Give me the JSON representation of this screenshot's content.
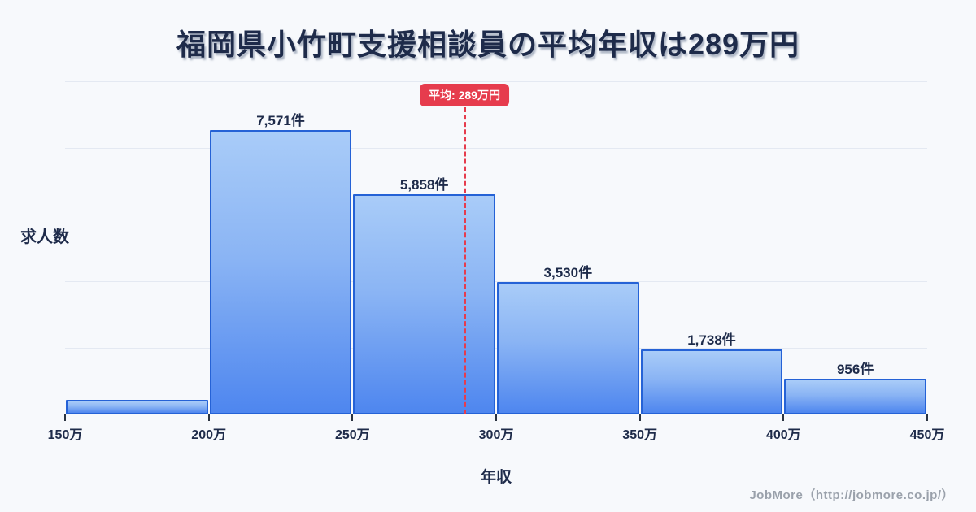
{
  "title": "福岡県小竹町支援相談員の平均年収は289万円",
  "footer": "JobMore（http://jobmore.co.jp/）",
  "colors": {
    "background": "#f7f9fc",
    "text_navy": "#1e2b4a",
    "bar_border": "#2562d6",
    "bar_fill_top": "#a9ccf8",
    "bar_fill_bottom": "#4e86ef",
    "gridline": "#e4e9f2",
    "accent_red": "#e63c4d",
    "footer_gray": "#9aa1ab",
    "badge_text": "#ffffff"
  },
  "chart_data": {
    "type": "bar",
    "title": "福岡県小竹町支援相談員の平均年収は289万円",
    "xlabel": "年収",
    "ylabel": "求人数",
    "unit_suffix": "件",
    "x_tick_labels": [
      "150万",
      "200万",
      "250万",
      "300万",
      "350万",
      "400万",
      "450万"
    ],
    "bins": [
      {
        "range_man_yen": [
          150,
          200
        ],
        "value": 390,
        "label": "",
        "estimated": true
      },
      {
        "range_man_yen": [
          200,
          250
        ],
        "value": 7571,
        "label": "7,571件"
      },
      {
        "range_man_yen": [
          250,
          300
        ],
        "value": 5858,
        "label": "5,858件"
      },
      {
        "range_man_yen": [
          300,
          350
        ],
        "value": 3530,
        "label": "3,530件"
      },
      {
        "range_man_yen": [
          350,
          400
        ],
        "value": 1738,
        "label": "1,738件"
      },
      {
        "range_man_yen": [
          400,
          450
        ],
        "value": 956,
        "label": "956件"
      }
    ],
    "average_line": {
      "value_man_yen": 289,
      "label": "平均: 289万円"
    },
    "xlim_man_yen": [
      150,
      450
    ],
    "ylim": [
      0,
      8900
    ],
    "grid": true,
    "legend_position": "none"
  }
}
